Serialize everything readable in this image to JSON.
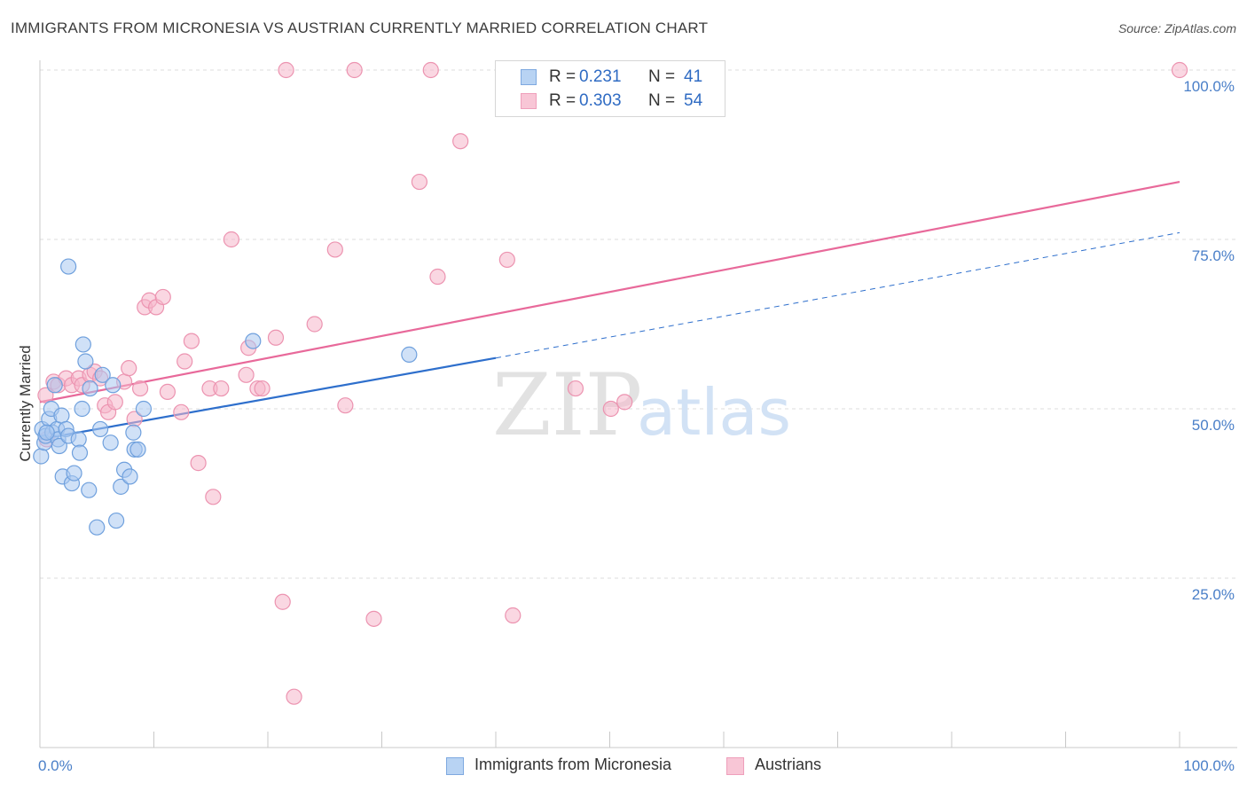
{
  "title": "IMMIGRANTS FROM MICRONESIA VS AUSTRIAN CURRENTLY MARRIED CORRELATION CHART",
  "source": "Source: ZipAtlas.com",
  "legend": {
    "row1": {
      "r_label": "R =",
      "r_value": "0.231",
      "n_label": "N =",
      "n_value": "41"
    },
    "row2": {
      "r_label": "R =",
      "r_value": "0.303",
      "n_label": "N =",
      "n_value": "54"
    }
  },
  "colors": {
    "blue_fill": "#a9c8f0",
    "blue_stroke": "#6fa0dd",
    "blue_line": "#2e6fcc",
    "pink_fill": "#f5b6ca",
    "pink_stroke": "#ec93b0",
    "pink_line": "#e8699a",
    "grid": "#dcdcdc",
    "tick_text": "#4a7fc8"
  },
  "watermark": {
    "zip": "ZIP",
    "atlas": "atlas"
  },
  "chart_data": {
    "type": "scatter",
    "xlabel": "",
    "ylabel": "Currently Married",
    "xlim": [
      0,
      100
    ],
    "ylim": [
      0,
      100
    ],
    "x_tick_labels": [
      "0.0%",
      "100.0%"
    ],
    "y_ticks": [
      {
        "value": 25,
        "label": "25.0%"
      },
      {
        "value": 50,
        "label": "50.0%"
      },
      {
        "value": 75,
        "label": "75.0%"
      },
      {
        "value": 100,
        "label": "100.0%"
      }
    ],
    "grid": true,
    "series": [
      {
        "name": "Immigrants from Micronesia",
        "color": "blue",
        "R": 0.231,
        "N": 41,
        "trend": {
          "x0": 0,
          "y0": 45.5,
          "x1": 40,
          "y1": 57.5,
          "dashed_to_x": 100,
          "dashed_to_y": 76
        },
        "points": [
          [
            0.1,
            43
          ],
          [
            0.2,
            47
          ],
          [
            0.4,
            45
          ],
          [
            0.5,
            46
          ],
          [
            0.8,
            48.5
          ],
          [
            1.0,
            50
          ],
          [
            1.1,
            46.5
          ],
          [
            1.3,
            53.5
          ],
          [
            1.5,
            47
          ],
          [
            1.6,
            45.5
          ],
          [
            1.7,
            44.5
          ],
          [
            1.9,
            49
          ],
          [
            2.0,
            40
          ],
          [
            2.3,
            47
          ],
          [
            2.5,
            46
          ],
          [
            2.5,
            71
          ],
          [
            2.8,
            39
          ],
          [
            3.0,
            40.5
          ],
          [
            3.4,
            45.5
          ],
          [
            3.5,
            43.5
          ],
          [
            3.7,
            50
          ],
          [
            3.8,
            59.5
          ],
          [
            4.0,
            57
          ],
          [
            4.3,
            38
          ],
          [
            4.4,
            53
          ],
          [
            5.0,
            32.5
          ],
          [
            5.3,
            47
          ],
          [
            5.5,
            55
          ],
          [
            6.2,
            45
          ],
          [
            6.4,
            53.5
          ],
          [
            6.7,
            33.5
          ],
          [
            7.1,
            38.5
          ],
          [
            7.4,
            41
          ],
          [
            7.9,
            40
          ],
          [
            8.2,
            46.5
          ],
          [
            8.3,
            44
          ],
          [
            8.6,
            44
          ],
          [
            9.1,
            50
          ],
          [
            18.7,
            60
          ],
          [
            32.4,
            58
          ],
          [
            0.6,
            46.5
          ]
        ]
      },
      {
        "name": "Austrians",
        "color": "pink",
        "R": 0.303,
        "N": 54,
        "trend": {
          "x0": 0,
          "y0": 51,
          "x1": 100,
          "y1": 83.5
        },
        "points": [
          [
            0.5,
            52
          ],
          [
            0.6,
            45.5
          ],
          [
            1.2,
            54
          ],
          [
            1.6,
            53.5
          ],
          [
            2.3,
            54.5
          ],
          [
            2.8,
            53.5
          ],
          [
            3.4,
            54.5
          ],
          [
            3.7,
            53.5
          ],
          [
            4.4,
            55
          ],
          [
            4.8,
            55.5
          ],
          [
            5.3,
            54.5
          ],
          [
            5.7,
            50.5
          ],
          [
            6.0,
            49.5
          ],
          [
            6.6,
            51
          ],
          [
            7.4,
            54
          ],
          [
            7.8,
            56
          ],
          [
            8.3,
            48.5
          ],
          [
            8.8,
            53
          ],
          [
            9.2,
            65
          ],
          [
            9.6,
            66
          ],
          [
            10.2,
            65
          ],
          [
            10.8,
            66.5
          ],
          [
            11.2,
            52.5
          ],
          [
            12.4,
            49.5
          ],
          [
            12.7,
            57
          ],
          [
            13.3,
            60
          ],
          [
            13.9,
            42
          ],
          [
            14.9,
            53
          ],
          [
            15.2,
            37
          ],
          [
            15.9,
            53
          ],
          [
            16.8,
            75
          ],
          [
            18.1,
            55
          ],
          [
            18.3,
            59
          ],
          [
            19.1,
            53
          ],
          [
            19.5,
            53
          ],
          [
            20.7,
            60.5
          ],
          [
            21.3,
            21.5
          ],
          [
            21.6,
            100
          ],
          [
            22.3,
            7.5
          ],
          [
            24.1,
            62.5
          ],
          [
            25.9,
            73.5
          ],
          [
            26.8,
            50.5
          ],
          [
            27.6,
            100
          ],
          [
            29.3,
            19
          ],
          [
            33.3,
            83.5
          ],
          [
            34.3,
            100
          ],
          [
            34.9,
            69.5
          ],
          [
            36.9,
            89.5
          ],
          [
            41.0,
            72
          ],
          [
            41.5,
            19.5
          ],
          [
            47.0,
            53
          ],
          [
            50.1,
            50
          ],
          [
            51.3,
            51
          ],
          [
            100,
            100
          ]
        ]
      }
    ],
    "legend_position": "top-center",
    "bottom_legend": [
      "Immigrants from Micronesia",
      "Austrians"
    ]
  }
}
